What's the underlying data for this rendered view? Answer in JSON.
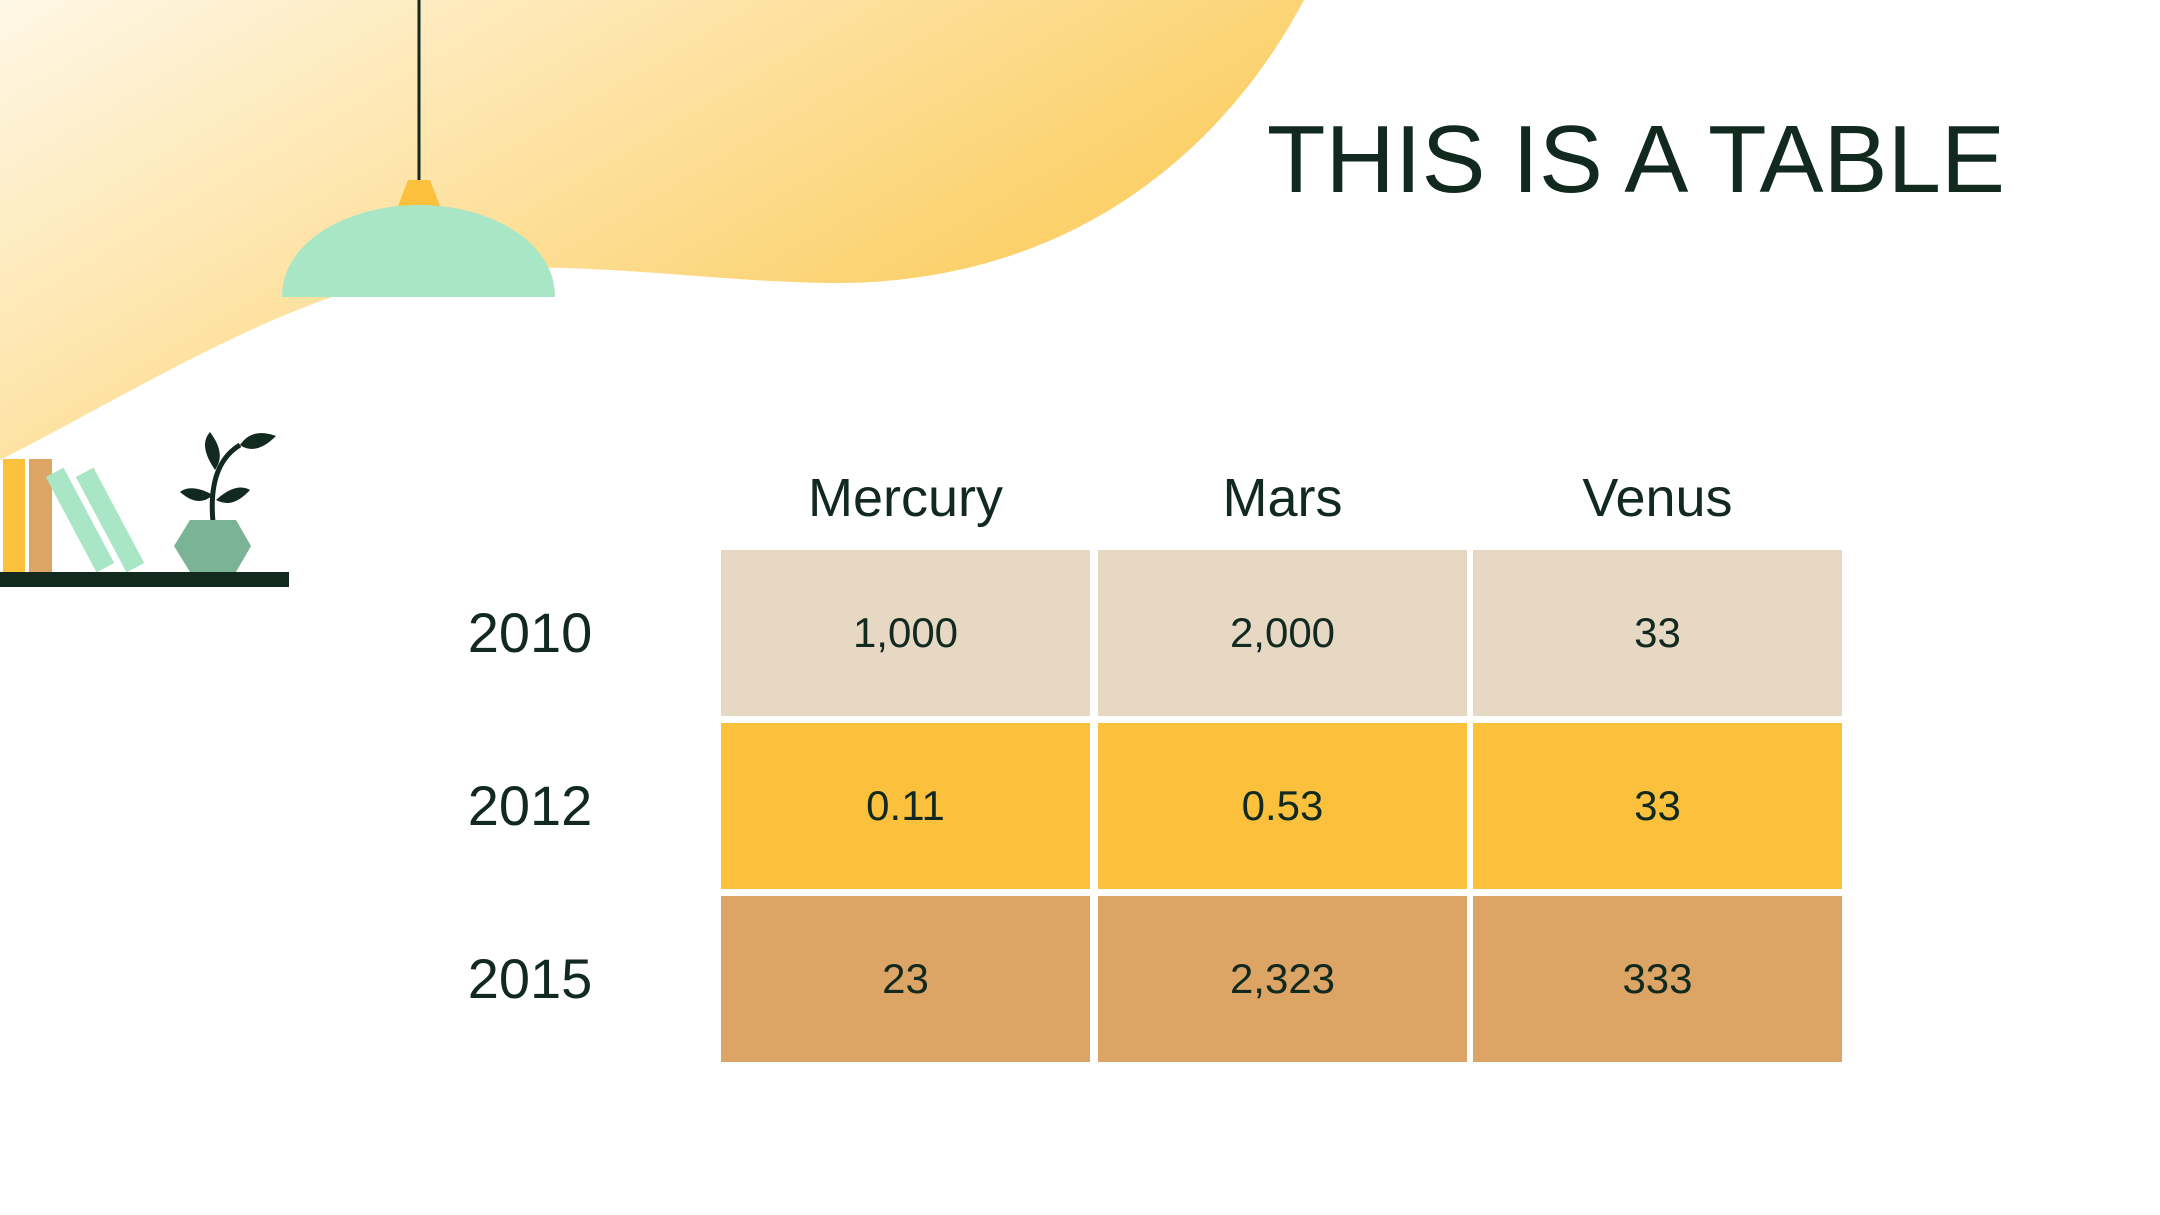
{
  "title": "THIS IS A TABLE",
  "table": {
    "columns": [
      "Mercury",
      "Mars",
      "Venus"
    ],
    "rows": [
      {
        "label": "2010",
        "cells": [
          "1,000",
          "2,000",
          "33"
        ]
      },
      {
        "label": "2012",
        "cells": [
          "0.11",
          "0.53",
          "33"
        ]
      },
      {
        "label": "2015",
        "cells": [
          "23",
          "2,323",
          "333"
        ]
      }
    ]
  }
}
